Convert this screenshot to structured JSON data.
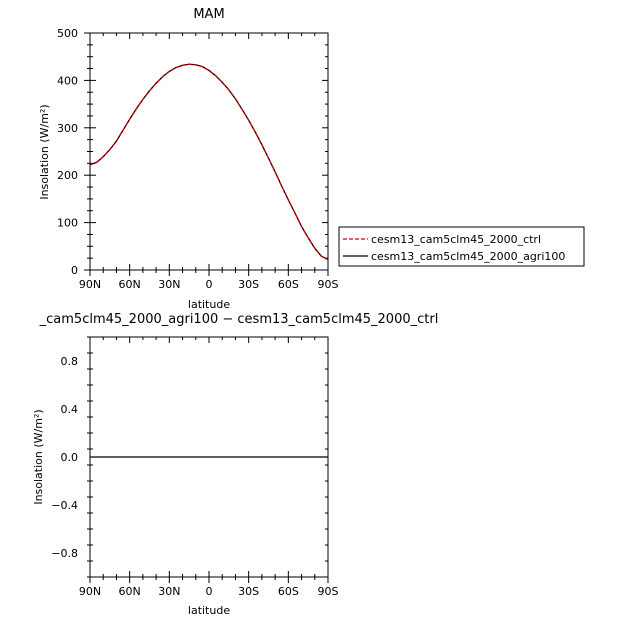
{
  "chart_data": [
    {
      "type": "line",
      "title": "MAM",
      "xlabel": "latitude",
      "ylabel": "Insolation (W/m²)",
      "xlim": [
        90,
        -90
      ],
      "ylim": [
        0,
        500
      ],
      "x_ticks": [
        90,
        60,
        30,
        0,
        -30,
        -60,
        -90
      ],
      "x_tick_labels": [
        "90N",
        "60N",
        "30N",
        "0",
        "30S",
        "60S",
        "90S"
      ],
      "y_ticks": [
        0,
        100,
        200,
        300,
        400,
        500
      ],
      "y_tick_labels": [
        "0",
        "100",
        "200",
        "300",
        "400",
        "500"
      ],
      "x": [
        90,
        85,
        80,
        75,
        70,
        65,
        60,
        55,
        50,
        45,
        40,
        35,
        30,
        25,
        20,
        15,
        10,
        5,
        0,
        -5,
        -10,
        -15,
        -20,
        -25,
        -30,
        -35,
        -40,
        -45,
        -50,
        -55,
        -60,
        -65,
        -70,
        -75,
        -80,
        -85,
        -90
      ],
      "series": [
        {
          "name": "cesm13_cam5clm45_2000_ctrl",
          "color": "#cc0000",
          "dash": "dashed",
          "values": [
            222,
            227,
            239,
            254,
            272,
            295,
            318,
            340,
            360,
            378,
            394,
            408,
            419,
            427,
            432,
            434,
            433,
            429,
            421,
            410,
            396,
            380,
            361,
            339,
            316,
            291,
            264,
            236,
            207,
            177,
            148,
            120,
            92,
            68,
            46,
            29,
            22
          ]
        },
        {
          "name": "cesm13_cam5clm45_2000_agri100",
          "color": "#000000",
          "dash": "solid",
          "values": [
            222,
            227,
            239,
            254,
            272,
            295,
            318,
            340,
            360,
            378,
            394,
            408,
            419,
            427,
            432,
            434,
            433,
            429,
            421,
            410,
            396,
            380,
            361,
            339,
            316,
            291,
            264,
            236,
            207,
            177,
            148,
            120,
            92,
            68,
            46,
            29,
            22
          ]
        }
      ],
      "legend": "right"
    },
    {
      "type": "line",
      "title": "_cam5clm45_2000_agri100 − cesm13_cam5clm45_2000_ctrl",
      "xlabel": "latitude",
      "ylabel": "Insolation (W/m²)",
      "xlim": [
        90,
        -90
      ],
      "ylim": [
        -1,
        1
      ],
      "x_ticks": [
        90,
        60,
        30,
        0,
        -30,
        -60,
        -90
      ],
      "x_tick_labels": [
        "90N",
        "60N",
        "30N",
        "0",
        "30S",
        "60S",
        "90S"
      ],
      "y_ticks": [
        -0.8,
        -0.4,
        0.0,
        0.4,
        0.8
      ],
      "y_tick_labels": [
        "−0.8",
        "−0.4",
        "0.0",
        "0.4",
        "0.8"
      ],
      "x": [
        90,
        -90
      ],
      "series": [
        {
          "color": "#000000",
          "dash": "solid",
          "values": [
            0,
            0
          ]
        }
      ]
    }
  ]
}
